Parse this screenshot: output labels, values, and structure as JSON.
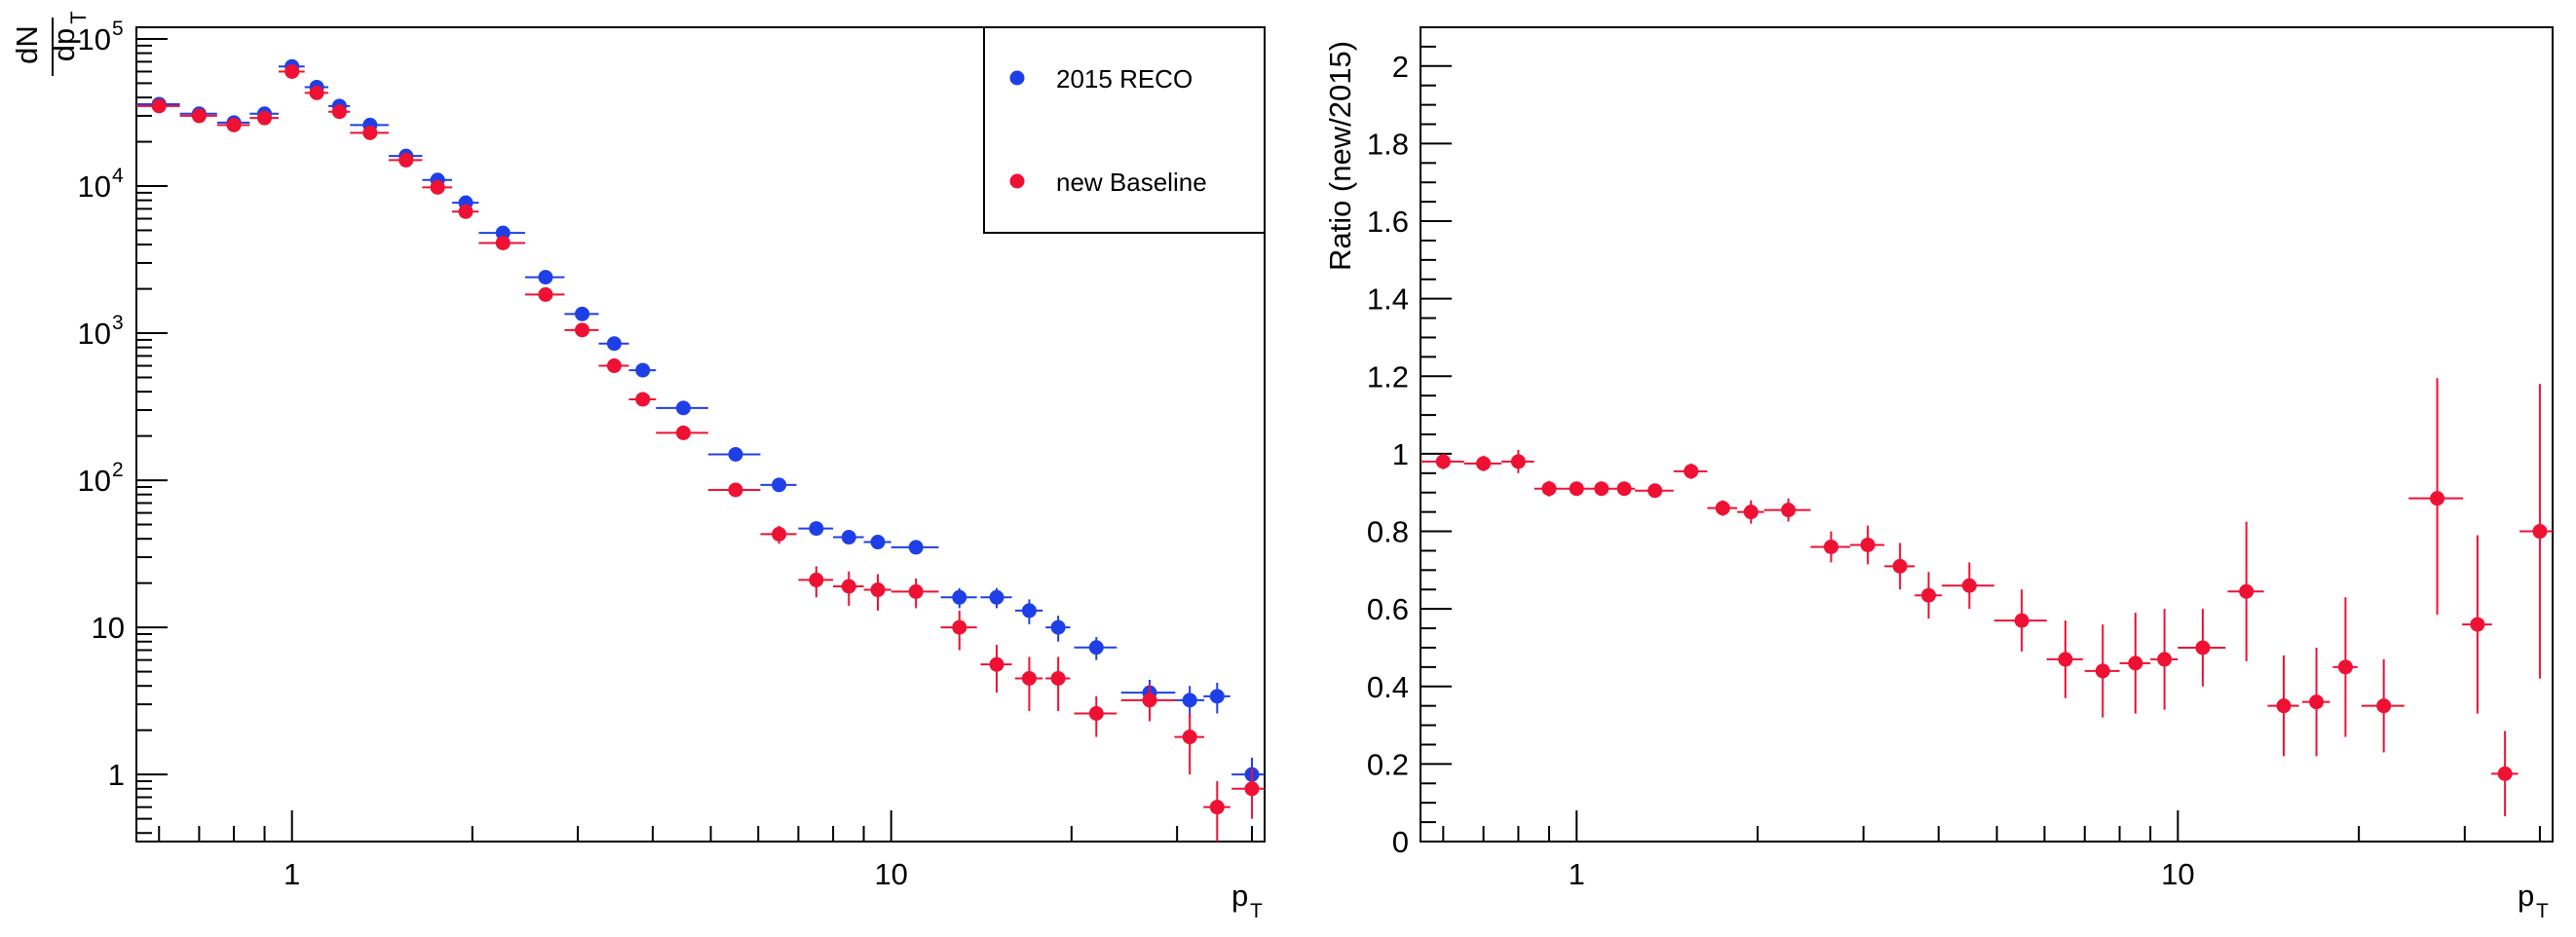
{
  "chart_data": [
    {
      "type": "scatter",
      "title": "",
      "xlabel": "p",
      "xlabel_sub": "T",
      "ylabel_num": "dN",
      "ylabel_den": "dp",
      "ylabel_den_sub": "T",
      "x_scale": "log",
      "y_scale": "log",
      "xlim": [
        0.55,
        42
      ],
      "ylim": [
        0.35,
        120000
      ],
      "grid": false,
      "legend_position": "top-right",
      "x_tick_labels": [
        {
          "value": 1,
          "label": "1"
        },
        {
          "value": 10,
          "label": "10"
        }
      ],
      "y_tick_labels": [
        {
          "value": 1,
          "label": "1",
          "exp": ""
        },
        {
          "value": 10,
          "label": "10",
          "exp": ""
        },
        {
          "value": 100,
          "label": "10",
          "exp": "2"
        },
        {
          "value": 1000,
          "label": "10",
          "exp": "3"
        },
        {
          "value": 10000,
          "label": "10",
          "exp": "4"
        },
        {
          "value": 100000,
          "label": "10",
          "exp": "5"
        }
      ],
      "series": [
        {
          "name": "2015 RECO",
          "color": "#1f3fe6",
          "points": [
            {
              "x": 0.6,
              "y": 36000,
              "xerr": 0.05,
              "ylo": 0,
              "yhi": 0
            },
            {
              "x": 0.7,
              "y": 31000,
              "xerr": 0.05,
              "ylo": 0,
              "yhi": 0
            },
            {
              "x": 0.8,
              "y": 27000,
              "xerr": 0.05,
              "ylo": 0,
              "yhi": 0
            },
            {
              "x": 0.9,
              "y": 31000,
              "xerr": 0.05,
              "ylo": 0,
              "yhi": 0
            },
            {
              "x": 1.0,
              "y": 65000,
              "xerr": 0.05,
              "ylo": 0,
              "yhi": 0
            },
            {
              "x": 1.1,
              "y": 47000,
              "xerr": 0.05,
              "ylo": 0,
              "yhi": 0
            },
            {
              "x": 1.2,
              "y": 35000,
              "xerr": 0.05,
              "ylo": 0,
              "yhi": 0
            },
            {
              "x": 1.35,
              "y": 26000,
              "xerr": 0.1,
              "ylo": 0,
              "yhi": 0
            },
            {
              "x": 1.55,
              "y": 16000,
              "xerr": 0.1,
              "ylo": 0,
              "yhi": 0
            },
            {
              "x": 1.75,
              "y": 11000,
              "xerr": 0.1,
              "ylo": 0,
              "yhi": 0
            },
            {
              "x": 1.95,
              "y": 7700,
              "xerr": 0.1,
              "ylo": 0,
              "yhi": 0
            },
            {
              "x": 2.25,
              "y": 4800,
              "xerr": 0.2,
              "ylo": 0,
              "yhi": 0
            },
            {
              "x": 2.65,
              "y": 2400,
              "xerr": 0.2,
              "ylo": 0,
              "yhi": 0
            },
            {
              "x": 3.05,
              "y": 1350,
              "xerr": 0.2,
              "ylo": 0,
              "yhi": 0
            },
            {
              "x": 3.45,
              "y": 850,
              "xerr": 0.2,
              "ylo": 0,
              "yhi": 0
            },
            {
              "x": 3.85,
              "y": 560,
              "xerr": 0.2,
              "ylo": 0,
              "yhi": 0
            },
            {
              "x": 4.5,
              "y": 310,
              "xerr": 0.45,
              "ylo": 0,
              "yhi": 0
            },
            {
              "x": 5.5,
              "y": 150,
              "xerr": 0.55,
              "ylo": 0,
              "yhi": 0
            },
            {
              "x": 6.5,
              "y": 93,
              "xerr": 0.45,
              "ylo": 0,
              "yhi": 0
            },
            {
              "x": 7.5,
              "y": 47,
              "xerr": 0.5,
              "ylo": 4,
              "yhi": 4
            },
            {
              "x": 8.5,
              "y": 41,
              "xerr": 0.5,
              "ylo": 4,
              "yhi": 4
            },
            {
              "x": 9.5,
              "y": 38,
              "xerr": 0.5,
              "ylo": 4,
              "yhi": 4
            },
            {
              "x": 11.0,
              "y": 35,
              "xerr": 1.0,
              "ylo": 3,
              "yhi": 3
            },
            {
              "x": 13.0,
              "y": 16,
              "xerr": 0.9,
              "ylo": 2.5,
              "yhi": 2.5
            },
            {
              "x": 15.0,
              "y": 16,
              "xerr": 0.9,
              "ylo": 2.5,
              "yhi": 2.5
            },
            {
              "x": 17.0,
              "y": 13,
              "xerr": 0.9,
              "ylo": 2.5,
              "yhi": 2.5
            },
            {
              "x": 19.0,
              "y": 10,
              "xerr": 0.9,
              "ylo": 2,
              "yhi": 2
            },
            {
              "x": 22.0,
              "y": 7.3,
              "xerr": 1.8,
              "ylo": 1.3,
              "yhi": 1.3
            },
            {
              "x": 27.0,
              "y": 3.6,
              "xerr": 2.8,
              "ylo": 0.8,
              "yhi": 0.8
            },
            {
              "x": 31.5,
              "y": 3.2,
              "xerr": 1.8,
              "ylo": 0.8,
              "yhi": 0.8
            },
            {
              "x": 35.0,
              "y": 3.4,
              "xerr": 1.8,
              "ylo": 0.8,
              "yhi": 0.8
            },
            {
              "x": 40.0,
              "y": 1.0,
              "xerr": 3.0,
              "ylo": 0.3,
              "yhi": 0.3
            }
          ]
        },
        {
          "name": "new Baseline",
          "color": "#ee1133",
          "points": [
            {
              "x": 0.6,
              "y": 35000,
              "xerr": 0.05,
              "ylo": 0,
              "yhi": 0
            },
            {
              "x": 0.7,
              "y": 30000,
              "xerr": 0.05,
              "ylo": 0,
              "yhi": 0
            },
            {
              "x": 0.8,
              "y": 26000,
              "xerr": 0.05,
              "ylo": 0,
              "yhi": 0
            },
            {
              "x": 0.9,
              "y": 29000,
              "xerr": 0.05,
              "ylo": 0,
              "yhi": 0
            },
            {
              "x": 1.0,
              "y": 60000,
              "xerr": 0.05,
              "ylo": 0,
              "yhi": 0
            },
            {
              "x": 1.1,
              "y": 43000,
              "xerr": 0.05,
              "ylo": 0,
              "yhi": 0
            },
            {
              "x": 1.2,
              "y": 32000,
              "xerr": 0.05,
              "ylo": 0,
              "yhi": 0
            },
            {
              "x": 1.35,
              "y": 23000,
              "xerr": 0.1,
              "ylo": 0,
              "yhi": 0
            },
            {
              "x": 1.55,
              "y": 15000,
              "xerr": 0.1,
              "ylo": 0,
              "yhi": 0
            },
            {
              "x": 1.75,
              "y": 9800,
              "xerr": 0.1,
              "ylo": 0,
              "yhi": 0
            },
            {
              "x": 1.95,
              "y": 6700,
              "xerr": 0.1,
              "ylo": 0,
              "yhi": 0
            },
            {
              "x": 2.25,
              "y": 4100,
              "xerr": 0.2,
              "ylo": 0,
              "yhi": 0
            },
            {
              "x": 2.65,
              "y": 1830,
              "xerr": 0.2,
              "ylo": 0,
              "yhi": 0
            },
            {
              "x": 3.05,
              "y": 1050,
              "xerr": 0.2,
              "ylo": 0,
              "yhi": 0
            },
            {
              "x": 3.45,
              "y": 600,
              "xerr": 0.2,
              "ylo": 0,
              "yhi": 0
            },
            {
              "x": 3.85,
              "y": 355,
              "xerr": 0.2,
              "ylo": 0,
              "yhi": 0
            },
            {
              "x": 4.5,
              "y": 210,
              "xerr": 0.45,
              "ylo": 0,
              "yhi": 0
            },
            {
              "x": 5.5,
              "y": 86,
              "xerr": 0.55,
              "ylo": 0,
              "yhi": 0
            },
            {
              "x": 6.5,
              "y": 43,
              "xerr": 0.45,
              "ylo": 6,
              "yhi": 6
            },
            {
              "x": 7.5,
              "y": 21,
              "xerr": 0.5,
              "ylo": 5,
              "yhi": 5
            },
            {
              "x": 8.5,
              "y": 19,
              "xerr": 0.5,
              "ylo": 5,
              "yhi": 5
            },
            {
              "x": 9.5,
              "y": 18,
              "xerr": 0.5,
              "ylo": 5,
              "yhi": 5
            },
            {
              "x": 11.0,
              "y": 17.5,
              "xerr": 1.0,
              "ylo": 4,
              "yhi": 4
            },
            {
              "x": 13.0,
              "y": 10,
              "xerr": 0.9,
              "ylo": 3,
              "yhi": 3
            },
            {
              "x": 15.0,
              "y": 5.6,
              "xerr": 0.9,
              "ylo": 2,
              "yhi": 2
            },
            {
              "x": 17.0,
              "y": 4.5,
              "xerr": 0.9,
              "ylo": 1.8,
              "yhi": 1.8
            },
            {
              "x": 19.0,
              "y": 4.5,
              "xerr": 0.9,
              "ylo": 1.8,
              "yhi": 1.8
            },
            {
              "x": 22.0,
              "y": 2.6,
              "xerr": 1.8,
              "ylo": 0.8,
              "yhi": 0.8
            },
            {
              "x": 27.0,
              "y": 3.2,
              "xerr": 2.8,
              "ylo": 0.9,
              "yhi": 0.9
            },
            {
              "x": 31.5,
              "y": 1.8,
              "xerr": 1.8,
              "ylo": 0.8,
              "yhi": 0.8
            },
            {
              "x": 35.0,
              "y": 0.6,
              "xerr": 1.8,
              "ylo": 0.25,
              "yhi": 0.3
            },
            {
              "x": 40.0,
              "y": 0.8,
              "xerr": 3.0,
              "ylo": 0.3,
              "yhi": 0.3
            }
          ]
        }
      ]
    },
    {
      "type": "scatter",
      "title": "",
      "xlabel": "p",
      "xlabel_sub": "T",
      "ylabel": "Ratio (new/2015)",
      "x_scale": "log",
      "y_scale": "linear",
      "xlim": [
        0.55,
        42
      ],
      "ylim": [
        0,
        2.1
      ],
      "grid": false,
      "legend_position": "none",
      "x_tick_labels": [
        {
          "value": 1,
          "label": "1"
        },
        {
          "value": 10,
          "label": "10"
        }
      ],
      "y_tick_labels": [
        {
          "value": 0,
          "label": "0"
        },
        {
          "value": 0.2,
          "label": "0.2"
        },
        {
          "value": 0.4,
          "label": "0.4"
        },
        {
          "value": 0.6,
          "label": "0.6"
        },
        {
          "value": 0.8,
          "label": "0.8"
        },
        {
          "value": 1.0,
          "label": "1"
        },
        {
          "value": 1.2,
          "label": "1.2"
        },
        {
          "value": 1.4,
          "label": "1.4"
        },
        {
          "value": 1.6,
          "label": "1.6"
        },
        {
          "value": 1.8,
          "label": "1.8"
        },
        {
          "value": 2.0,
          "label": "2"
        }
      ],
      "series": [
        {
          "name": "",
          "color": "#ee1133",
          "points": [
            {
              "x": 0.6,
              "y": 0.98,
              "xerr": 0.05,
              "ylo": 0.02,
              "yhi": 0.02
            },
            {
              "x": 0.7,
              "y": 0.975,
              "xerr": 0.05,
              "ylo": 0.02,
              "yhi": 0.02
            },
            {
              "x": 0.8,
              "y": 0.98,
              "xerr": 0.05,
              "ylo": 0.03,
              "yhi": 0.03
            },
            {
              "x": 0.9,
              "y": 0.91,
              "xerr": 0.05,
              "ylo": 0.02,
              "yhi": 0.02
            },
            {
              "x": 1.0,
              "y": 0.91,
              "xerr": 0.05,
              "ylo": 0.01,
              "yhi": 0.01
            },
            {
              "x": 1.1,
              "y": 0.91,
              "xerr": 0.05,
              "ylo": 0.01,
              "yhi": 0.01
            },
            {
              "x": 1.2,
              "y": 0.91,
              "xerr": 0.05,
              "ylo": 0.01,
              "yhi": 0.01
            },
            {
              "x": 1.35,
              "y": 0.905,
              "xerr": 0.1,
              "ylo": 0.01,
              "yhi": 0.01
            },
            {
              "x": 1.55,
              "y": 0.955,
              "xerr": 0.1,
              "ylo": 0.02,
              "yhi": 0.02
            },
            {
              "x": 1.75,
              "y": 0.86,
              "xerr": 0.1,
              "ylo": 0.02,
              "yhi": 0.02
            },
            {
              "x": 1.95,
              "y": 0.85,
              "xerr": 0.1,
              "ylo": 0.03,
              "yhi": 0.03
            },
            {
              "x": 2.25,
              "y": 0.855,
              "xerr": 0.2,
              "ylo": 0.03,
              "yhi": 0.03
            },
            {
              "x": 2.65,
              "y": 0.76,
              "xerr": 0.2,
              "ylo": 0.04,
              "yhi": 0.04
            },
            {
              "x": 3.05,
              "y": 0.765,
              "xerr": 0.2,
              "ylo": 0.05,
              "yhi": 0.05
            },
            {
              "x": 3.45,
              "y": 0.71,
              "xerr": 0.2,
              "ylo": 0.06,
              "yhi": 0.06
            },
            {
              "x": 3.85,
              "y": 0.635,
              "xerr": 0.2,
              "ylo": 0.06,
              "yhi": 0.06
            },
            {
              "x": 4.5,
              "y": 0.66,
              "xerr": 0.45,
              "ylo": 0.06,
              "yhi": 0.06
            },
            {
              "x": 5.5,
              "y": 0.57,
              "xerr": 0.55,
              "ylo": 0.08,
              "yhi": 0.08
            },
            {
              "x": 6.5,
              "y": 0.47,
              "xerr": 0.45,
              "ylo": 0.1,
              "yhi": 0.1
            },
            {
              "x": 7.5,
              "y": 0.44,
              "xerr": 0.5,
              "ylo": 0.12,
              "yhi": 0.12
            },
            {
              "x": 8.5,
              "y": 0.46,
              "xerr": 0.5,
              "ylo": 0.13,
              "yhi": 0.13
            },
            {
              "x": 9.5,
              "y": 0.47,
              "xerr": 0.5,
              "ylo": 0.13,
              "yhi": 0.13
            },
            {
              "x": 11.0,
              "y": 0.5,
              "xerr": 1.0,
              "ylo": 0.1,
              "yhi": 0.1
            },
            {
              "x": 13.0,
              "y": 0.645,
              "xerr": 0.9,
              "ylo": 0.18,
              "yhi": 0.18
            },
            {
              "x": 15.0,
              "y": 0.35,
              "xerr": 0.9,
              "ylo": 0.13,
              "yhi": 0.13
            },
            {
              "x": 17.0,
              "y": 0.36,
              "xerr": 0.9,
              "ylo": 0.14,
              "yhi": 0.14
            },
            {
              "x": 19.0,
              "y": 0.45,
              "xerr": 0.9,
              "ylo": 0.18,
              "yhi": 0.18
            },
            {
              "x": 22.0,
              "y": 0.35,
              "xerr": 1.8,
              "ylo": 0.12,
              "yhi": 0.12
            },
            {
              "x": 27.0,
              "y": 0.885,
              "xerr": 2.8,
              "ylo": 0.3,
              "yhi": 0.31
            },
            {
              "x": 31.5,
              "y": 0.56,
              "xerr": 1.8,
              "ylo": 0.23,
              "yhi": 0.23
            },
            {
              "x": 35.0,
              "y": 0.175,
              "xerr": 1.8,
              "ylo": 0.11,
              "yhi": 0.11
            },
            {
              "x": 40.0,
              "y": 0.8,
              "xerr": 3.0,
              "ylo": 0.38,
              "yhi": 0.38
            }
          ]
        }
      ]
    }
  ]
}
